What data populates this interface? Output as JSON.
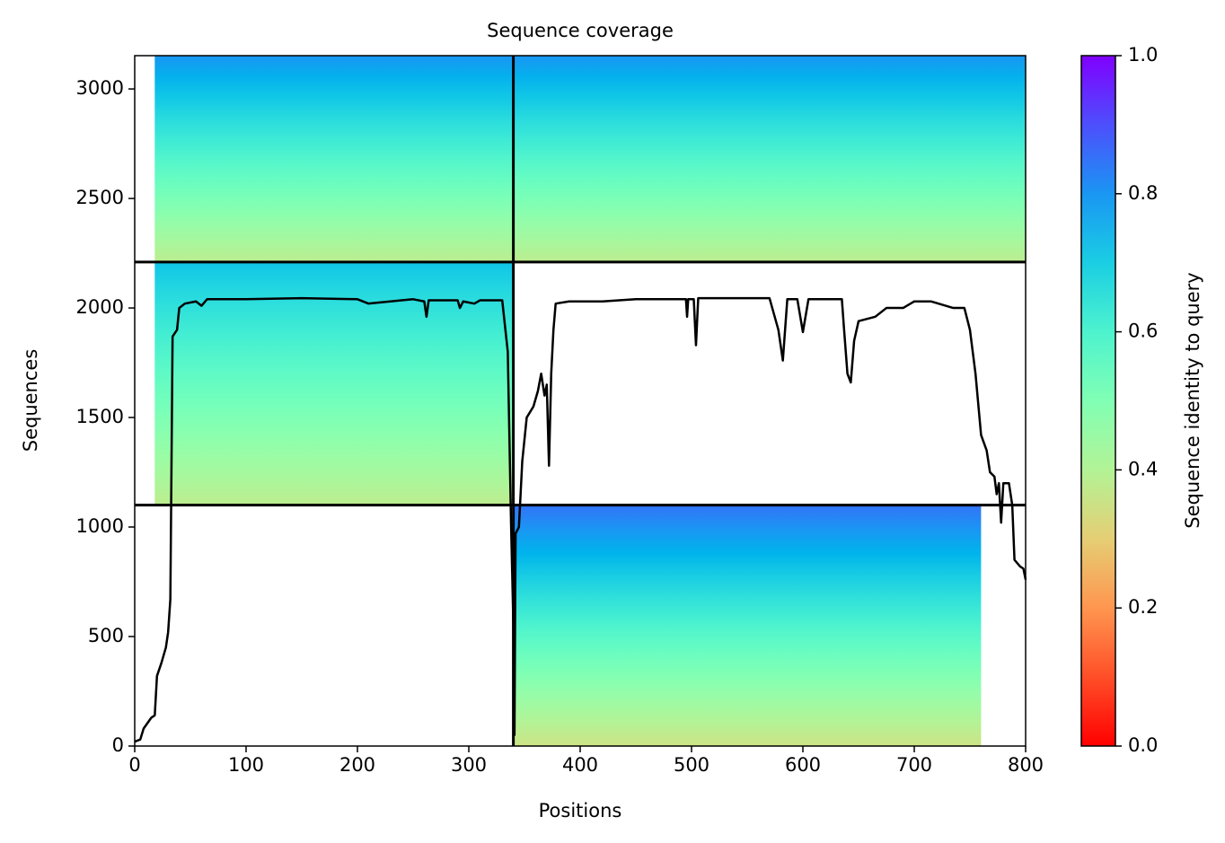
{
  "chart_data": {
    "type": "line",
    "title": "Sequence coverage",
    "xlabel": "Positions",
    "ylabel": "Sequences",
    "colorbar_label": "Sequence identity to query",
    "xlim": [
      0,
      800
    ],
    "xticks": [
      0,
      100,
      200,
      300,
      400,
      500,
      600,
      700,
      800
    ],
    "ylim": [
      0,
      3152
    ],
    "yticks": [
      0,
      500,
      1000,
      1500,
      2000,
      2500,
      3000
    ],
    "clim": [
      0,
      1
    ],
    "cticks": [
      {
        "value": 0,
        "label": "0.0"
      },
      {
        "value": 0.2,
        "label": "0.2"
      },
      {
        "value": 0.4,
        "label": "0.4"
      },
      {
        "value": 0.6,
        "label": "0.6"
      },
      {
        "value": 0.8,
        "label": "0.8"
      },
      {
        "value": 1,
        "label": "1.0"
      }
    ],
    "blocks": [
      {
        "x": [
          18,
          340
        ],
        "rows": [
          2210,
          3152
        ],
        "identity": [
          0.38,
          0.8
        ]
      },
      {
        "x": [
          340,
          800
        ],
        "rows": [
          2210,
          3152
        ],
        "identity": [
          0.38,
          0.8
        ]
      },
      {
        "x": [
          18,
          340
        ],
        "rows": [
          1100,
          2210
        ],
        "identity": [
          0.38,
          0.72
        ]
      },
      {
        "x": [
          340,
          760
        ],
        "rows": [
          0,
          1100
        ],
        "identity": [
          0.35,
          0.85
        ]
      }
    ],
    "hlines": [
      1100,
      2210
    ],
    "vlines": [
      340
    ],
    "coverage": {
      "color": "#000000",
      "x": [
        0,
        5,
        8,
        15,
        18,
        20,
        24,
        28,
        30,
        32,
        34,
        38,
        40,
        45,
        55,
        60,
        65,
        100,
        150,
        200,
        210,
        250,
        260,
        262,
        264,
        290,
        292,
        295,
        305,
        310,
        330,
        335,
        338,
        340,
        341,
        342,
        345,
        348,
        352,
        358,
        362,
        365,
        368,
        370,
        372,
        374,
        376,
        378,
        390,
        420,
        450,
        495,
        496,
        497,
        502,
        504,
        506,
        570,
        578,
        582,
        586,
        595,
        600,
        605,
        635,
        637,
        640,
        643,
        646,
        650,
        665,
        675,
        690,
        700,
        715,
        735,
        745,
        750,
        755,
        760,
        765,
        768,
        772,
        774,
        776,
        778,
        780,
        785,
        788,
        790,
        795,
        798,
        800
      ],
      "values": [
        20,
        30,
        80,
        130,
        140,
        320,
        380,
        450,
        520,
        670,
        1870,
        1900,
        2000,
        2020,
        2030,
        2010,
        2040,
        2040,
        2045,
        2040,
        2020,
        2040,
        2030,
        1960,
        2035,
        2035,
        2000,
        2030,
        2020,
        2035,
        2035,
        1800,
        1000,
        560,
        50,
        970,
        1000,
        1300,
        1500,
        1550,
        1620,
        1700,
        1600,
        1650,
        1280,
        1700,
        1900,
        2020,
        2030,
        2030,
        2040,
        2040,
        1960,
        2040,
        2040,
        1830,
        2045,
        2045,
        1900,
        1760,
        2040,
        2040,
        1890,
        2040,
        2040,
        1900,
        1700,
        1660,
        1850,
        1940,
        1960,
        2000,
        2000,
        2030,
        2030,
        2000,
        2000,
        1900,
        1700,
        1420,
        1350,
        1250,
        1230,
        1150,
        1200,
        1020,
        1200,
        1200,
        1100,
        850,
        820,
        810,
        760
      ]
    }
  }
}
